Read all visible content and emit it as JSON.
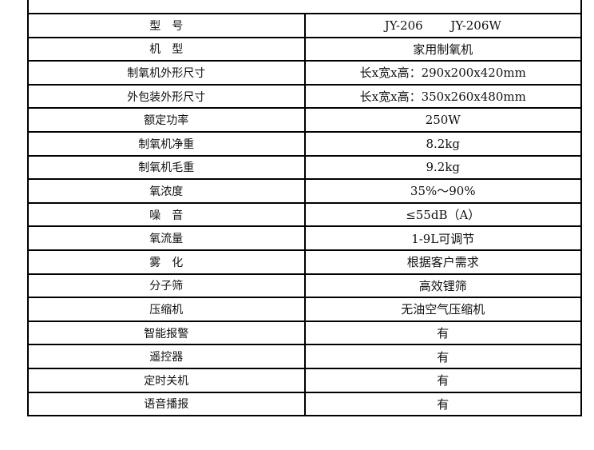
{
  "table": {
    "rows": [
      {
        "label": "型　号",
        "value": "JY-206　　 JY-206W"
      },
      {
        "label": "机　型",
        "value": "家用制氧机"
      },
      {
        "label": "制氧机外形尺寸",
        "value": "长x宽x高：290x200x420mm"
      },
      {
        "label": "外包装外形尺寸",
        "value": "长x宽x高：350x260x480mm"
      },
      {
        "label": "额定功率",
        "value": "250W"
      },
      {
        "label": "制氧机净重",
        "value": "8.2kg"
      },
      {
        "label": "制氧机毛重",
        "value": "9.2kg"
      },
      {
        "label": "氧浓度",
        "value": "35%～90%"
      },
      {
        "label": "噪　音",
        "value": "≤55dB（A）"
      },
      {
        "label": "氧流量",
        "value": "1-9L可调节"
      },
      {
        "label": "雾　化",
        "value": "根据客户需求"
      },
      {
        "label": "分子筛",
        "value": "高效锂筛"
      },
      {
        "label": "压缩机",
        "value": "无油空气压缩机"
      },
      {
        "label": "智能报警",
        "value": "有"
      },
      {
        "label": "遥控器",
        "value": "有"
      },
      {
        "label": "定时关机",
        "value": "有"
      },
      {
        "label": "语音播报",
        "value": "有"
      }
    ]
  }
}
